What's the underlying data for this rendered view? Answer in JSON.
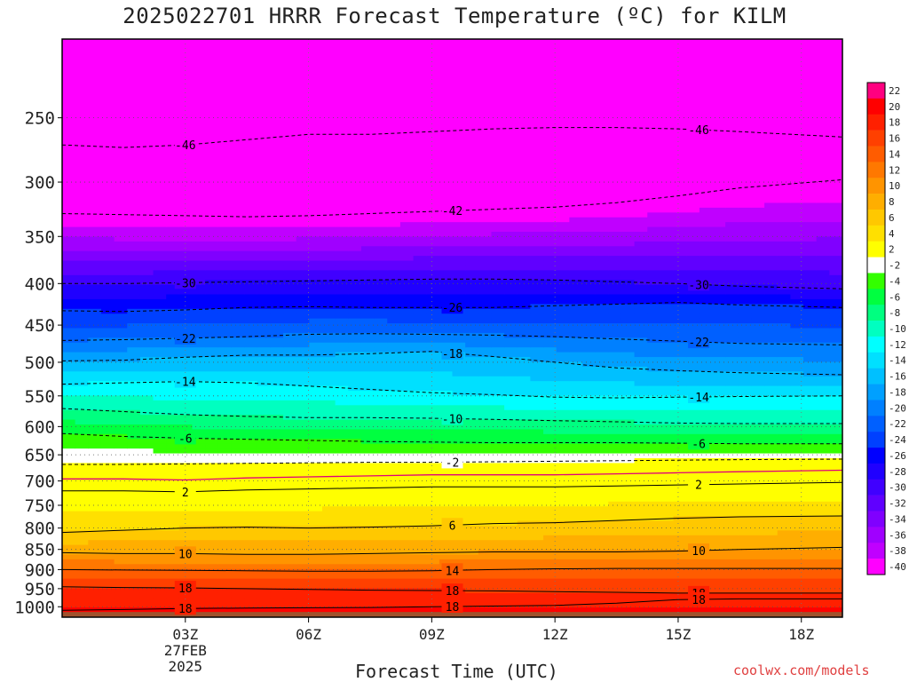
{
  "chart_data": {
    "type": "heatmap",
    "title": "2025022701 HRRR Forecast Temperature (ºC) for KILM",
    "xlabel": "Forecast Time (UTC)",
    "credit": "coolwx.com/models",
    "x_ticks": [
      "03Z",
      "06Z",
      "09Z",
      "12Z",
      "15Z",
      "18Z"
    ],
    "x_hours": [
      3,
      6,
      9,
      12,
      15,
      18
    ],
    "x_date_label": [
      "27FEB",
      "2025"
    ],
    "xlim": [
      0,
      19
    ],
    "y_ticks": [
      250,
      300,
      350,
      400,
      450,
      500,
      550,
      600,
      650,
      700,
      750,
      800,
      850,
      900,
      950,
      1000
    ],
    "y_scale": "log-pressure",
    "ylim": [
      1030,
      200
    ],
    "colorbar": {
      "labels": [
        "22",
        "20",
        "18",
        "16",
        "14",
        "12",
        "10",
        "8",
        "6",
        "4",
        "2",
        "-2",
        "-4",
        "-6",
        "-8",
        "-10",
        "-12",
        "-14",
        "-16",
        "-18",
        "-20",
        "-22",
        "-24",
        "-26",
        "-28",
        "-30",
        "-32",
        "-34",
        "-36",
        "-38",
        "-40"
      ],
      "colors": [
        "#ff0080",
        "#ff0000",
        "#ff2000",
        "#ff4000",
        "#ff5c00",
        "#ff7800",
        "#ff9400",
        "#ffae00",
        "#ffc800",
        "#ffe000",
        "#ffff00",
        "#ffffff",
        "#33ff00",
        "#00ff40",
        "#00ff80",
        "#00ffc0",
        "#00ffff",
        "#00e0ff",
        "#00c0ff",
        "#00a0ff",
        "#0080ff",
        "#0060ff",
        "#0040ff",
        "#0000ff",
        "#2000ff",
        "#4000ff",
        "#6000ff",
        "#8000ff",
        "#a000ff",
        "#c000ff",
        "#ff00ff"
      ]
    },
    "series": [
      {
        "label": "-46",
        "values": [
          270,
          272,
          270,
          266,
          262,
          262,
          260,
          258,
          257,
          257,
          258,
          260,
          264
        ]
      },
      {
        "label": "-42",
        "values": [
          328,
          329,
          330,
          331,
          330,
          328,
          326,
          324,
          322,
          318,
          312,
          305,
          298
        ]
      },
      {
        "label": "-30",
        "values": [
          400,
          400,
          399,
          398,
          397,
          396,
          395,
          395,
          396,
          398,
          400,
          403,
          406
        ]
      },
      {
        "label": "-26",
        "values": [
          432,
          433,
          431,
          428,
          427,
          428,
          428,
          428,
          426,
          424,
          422,
          425,
          428
        ]
      },
      {
        "label": "-22",
        "values": [
          470,
          469,
          467,
          465,
          462,
          461,
          462,
          463,
          465,
          468,
          471,
          474,
          476
        ]
      },
      {
        "label": "-18",
        "values": [
          498,
          497,
          493,
          490,
          490,
          488,
          485,
          492,
          500,
          508,
          512,
          515,
          518
        ]
      },
      {
        "label": "-14",
        "values": [
          532,
          530,
          528,
          530,
          535,
          540,
          545,
          548,
          552,
          553,
          552,
          551,
          550
        ]
      },
      {
        "label": "-10",
        "values": [
          570,
          575,
          580,
          583,
          585,
          585,
          586,
          588,
          590,
          592,
          594,
          595,
          595
        ]
      },
      {
        "label": "-6",
        "values": [
          612,
          617,
          620,
          622,
          624,
          626,
          627,
          628,
          628,
          628,
          629,
          630,
          630
        ]
      },
      {
        "label": "-2",
        "values": [
          668,
          668,
          667,
          666,
          665,
          664,
          664,
          663,
          662,
          661,
          660,
          659,
          658
        ]
      },
      {
        "label": "2",
        "values": [
          720,
          720,
          722,
          718,
          716,
          714,
          712,
          712,
          712,
          710,
          708,
          706,
          703
        ]
      },
      {
        "label": "6",
        "values": [
          810,
          805,
          800,
          798,
          800,
          798,
          795,
          790,
          788,
          783,
          778,
          775,
          773
        ]
      },
      {
        "label": "10",
        "values": [
          858,
          860,
          860,
          862,
          862,
          860,
          858,
          856,
          856,
          856,
          854,
          850,
          845
        ]
      },
      {
        "label": "14",
        "values": [
          900,
          901,
          902,
          903,
          904,
          904,
          903,
          900,
          898,
          897,
          897,
          897,
          897
        ]
      },
      {
        "label": "18",
        "values": [
          945,
          947,
          948,
          950,
          952,
          954,
          955,
          956,
          958,
          960,
          962,
          962,
          962
        ]
      },
      {
        "label": "18",
        "values": [
          1010,
          1008,
          1005,
          1004,
          1003,
          1002,
          1000,
          998,
          996,
          990,
          980,
          978,
          978
        ]
      }
    ],
    "series_hours": [
      0,
      1.5,
      3,
      4.5,
      6,
      7.5,
      9,
      10.5,
      12,
      13.5,
      15,
      16.5,
      19
    ]
  }
}
